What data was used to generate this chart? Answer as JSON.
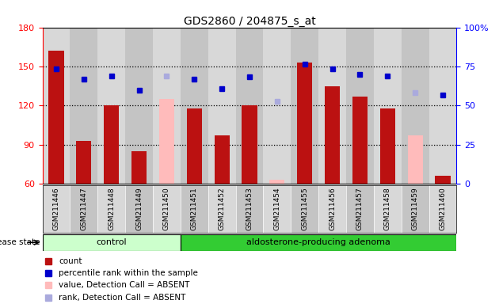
{
  "title": "GDS2860 / 204875_s_at",
  "samples": [
    "GSM211446",
    "GSM211447",
    "GSM211448",
    "GSM211449",
    "GSM211450",
    "GSM211451",
    "GSM211452",
    "GSM211453",
    "GSM211454",
    "GSM211455",
    "GSM211456",
    "GSM211457",
    "GSM211458",
    "GSM211459",
    "GSM211460"
  ],
  "count_values": [
    162,
    93,
    120,
    85,
    125,
    118,
    97,
    120,
    63,
    153,
    135,
    127,
    118,
    97,
    66
  ],
  "percentile_values": [
    148,
    140,
    143,
    132,
    143,
    140,
    133,
    142,
    123,
    152,
    148,
    144,
    143,
    130,
    128
  ],
  "absent_mask": [
    false,
    false,
    false,
    false,
    true,
    false,
    false,
    false,
    true,
    false,
    false,
    false,
    false,
    true,
    false
  ],
  "ylim_left": [
    60,
    180
  ],
  "yticks_left": [
    60,
    90,
    120,
    150,
    180
  ],
  "yticks_right_labels": [
    "0",
    "25",
    "50",
    "75",
    "100%"
  ],
  "yticks_right_pos": [
    60,
    90,
    120,
    150,
    180
  ],
  "bar_color_present": "#bb1111",
  "bar_color_absent": "#ffbbbb",
  "dot_color_present": "#0000cc",
  "dot_color_absent": "#aaaadd",
  "control_samples": 5,
  "control_label": "control",
  "adenoma_label": "aldosterone-producing adenoma",
  "control_bg": "#ccffcc",
  "adenoma_bg": "#33cc33",
  "disease_state_label": "disease state",
  "legend_items": [
    "count",
    "percentile rank within the sample",
    "value, Detection Call = ABSENT",
    "rank, Detection Call = ABSENT"
  ],
  "col_bg_even": "#d8d8d8",
  "col_bg_odd": "#c4c4c4"
}
